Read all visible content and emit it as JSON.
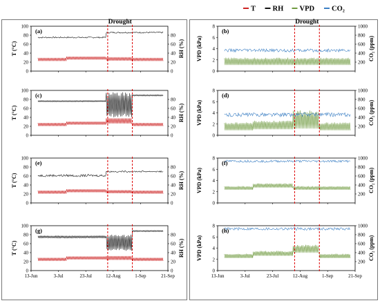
{
  "legend": {
    "items": [
      {
        "name": "T",
        "color": "#cc2222"
      },
      {
        "name": "RH",
        "color": "#111111"
      },
      {
        "name": "VPD",
        "color": "#6f9a3f"
      },
      {
        "name": "CO₂",
        "color": "#3b7fc4"
      }
    ]
  },
  "colors": {
    "T": "#cc2222",
    "RH": "#111111",
    "VPD": "#6f9a3f",
    "CO2": "#3b7fc4",
    "drought_line": "#dd0000"
  },
  "x_ticks": [
    "13-Jun",
    "3-Jul",
    "23-Jul",
    "12-Aug",
    "1-Sep",
    "21-Sep"
  ],
  "chart_data": [
    {
      "id": "a",
      "panel_label": "(a)",
      "type": "line",
      "title": "Drought",
      "ylabel_left": "T  (°C)",
      "ylabel_right": "RH (%)",
      "ylim_left": [
        0,
        100
      ],
      "ylim_right": [
        0,
        100
      ],
      "yticks_left": [
        0,
        20,
        40,
        60,
        80,
        100
      ],
      "yticks_right": [
        0,
        20,
        40,
        60,
        80
      ],
      "xlim": [
        "2023-06-13",
        "2023-09-21"
      ],
      "drought": [
        "2023-08-08",
        "2023-08-26"
      ],
      "series": [
        {
          "name": "T",
          "axis": "left",
          "amp_mode": "const",
          "values": [
            {
              "start": "2023-06-18",
              "end": "2023-07-09",
              "mean": 26,
              "amp": 3.5
            },
            {
              "start": "2023-07-09",
              "end": "2023-08-07",
              "mean": 29,
              "amp": 3.5
            },
            {
              "start": "2023-08-07",
              "end": "2023-08-26",
              "mean": 27,
              "amp": 4
            },
            {
              "start": "2023-08-26",
              "end": "2023-09-18",
              "mean": 26,
              "amp": 3.5
            }
          ]
        },
        {
          "name": "RH",
          "axis": "right",
          "amp_mode": "noise",
          "values": [
            {
              "start": "2023-06-18",
              "end": "2023-08-07",
              "mean": 75,
              "amp": 1.5
            },
            {
              "start": "2023-08-07",
              "end": "2023-09-18",
              "mean": 86,
              "amp": 1.5
            }
          ]
        }
      ]
    },
    {
      "id": "b",
      "panel_label": "(b)",
      "type": "line",
      "title": "Drought",
      "ylabel_left": "VPD (kPa)",
      "ylabel_right": "CO₂ (ppm)",
      "ylim_left": [
        0,
        8
      ],
      "ylim_right": [
        0,
        1000
      ],
      "yticks_left": [
        0,
        2,
        4,
        6,
        8
      ],
      "yticks_right": [
        200,
        400,
        600,
        800,
        1000
      ],
      "xlim": [
        "2023-06-13",
        "2023-09-21"
      ],
      "drought": [
        "2023-08-08",
        "2023-08-26"
      ],
      "series": [
        {
          "name": "VPD",
          "axis": "left",
          "amp_mode": "spike",
          "values": [
            {
              "start": "2023-06-18",
              "end": "2023-07-09",
              "mean": 1.2,
              "amp": 1.2
            },
            {
              "start": "2023-07-09",
              "end": "2023-08-07",
              "mean": 1.2,
              "amp": 1.2
            },
            {
              "start": "2023-08-07",
              "end": "2023-09-18",
              "mean": 1.2,
              "amp": 1.2
            }
          ]
        },
        {
          "name": "CO₂",
          "axis": "right",
          "amp_mode": "noise",
          "values": [
            {
              "start": "2023-06-18",
              "end": "2023-09-18",
              "mean": 460,
              "amp": 35
            }
          ]
        }
      ]
    },
    {
      "id": "c",
      "panel_label": "(c)",
      "type": "line",
      "ylabel_left": "T  (°C)",
      "ylabel_right": "RH (%)",
      "ylim_left": [
        0,
        100
      ],
      "ylim_right": [
        0,
        100
      ],
      "yticks_left": [
        0,
        20,
        40,
        60,
        80,
        100
      ],
      "yticks_right": [
        0,
        20,
        40,
        60,
        80
      ],
      "xlim": [
        "2023-06-13",
        "2023-09-21"
      ],
      "drought": [
        "2023-08-08",
        "2023-08-26"
      ],
      "series": [
        {
          "name": "T",
          "axis": "left",
          "amp_mode": "const",
          "values": [
            {
              "start": "2023-06-18",
              "end": "2023-07-09",
              "mean": 24,
              "amp": 3.5
            },
            {
              "start": "2023-07-09",
              "end": "2023-08-07",
              "mean": 27,
              "amp": 3.5
            },
            {
              "start": "2023-08-07",
              "end": "2023-08-26",
              "mean": 32,
              "amp": 6
            },
            {
              "start": "2023-08-26",
              "end": "2023-09-18",
              "mean": 24,
              "amp": 3.5
            }
          ]
        },
        {
          "name": "RH",
          "axis": "right",
          "amp_mode": "osc",
          "values": [
            {
              "start": "2023-06-18",
              "end": "2023-08-07",
              "mean": 76,
              "amp": 1.5
            },
            {
              "start": "2023-08-07",
              "end": "2023-08-26",
              "mean": 68,
              "amp": 28
            },
            {
              "start": "2023-08-26",
              "end": "2023-09-18",
              "mean": 89,
              "amp": 1.5
            }
          ]
        }
      ]
    },
    {
      "id": "d",
      "panel_label": "(d)",
      "type": "line",
      "ylabel_left": "VPD (kPa)",
      "ylabel_right": "CO₂ (ppm)",
      "ylim_left": [
        0,
        8
      ],
      "ylim_right": [
        0,
        1000
      ],
      "yticks_left": [
        0,
        2,
        4,
        6,
        8
      ],
      "yticks_right": [
        200,
        400,
        600,
        800,
        1000
      ],
      "xlim": [
        "2023-06-13",
        "2023-09-21"
      ],
      "drought": [
        "2023-08-08",
        "2023-08-26"
      ],
      "series": [
        {
          "name": "VPD",
          "axis": "left",
          "amp_mode": "spike",
          "values": [
            {
              "start": "2023-06-18",
              "end": "2023-07-09",
              "mean": 1.0,
              "amp": 1.3
            },
            {
              "start": "2023-07-09",
              "end": "2023-08-07",
              "mean": 1.2,
              "amp": 1.4
            },
            {
              "start": "2023-08-07",
              "end": "2023-08-26",
              "mean": 1.5,
              "amp": 3.0
            },
            {
              "start": "2023-08-26",
              "end": "2023-09-18",
              "mean": 1.0,
              "amp": 1.3
            }
          ]
        },
        {
          "name": "CO₂",
          "axis": "right",
          "amp_mode": "noise",
          "values": [
            {
              "start": "2023-06-18",
              "end": "2023-09-18",
              "mean": 460,
              "amp": 45
            }
          ]
        }
      ]
    },
    {
      "id": "e",
      "panel_label": "(e)",
      "type": "line",
      "ylabel_left": "T  (°C)",
      "ylabel_right": "RH (%)",
      "ylim_left": [
        0,
        100
      ],
      "ylim_right": [
        0,
        100
      ],
      "yticks_left": [
        0,
        20,
        40,
        60,
        80,
        100
      ],
      "yticks_right": [
        0,
        20,
        40,
        60,
        80
      ],
      "xlim": [
        "2023-06-13",
        "2023-09-21"
      ],
      "drought": [
        "2023-08-08",
        "2023-08-26"
      ],
      "series": [
        {
          "name": "T",
          "axis": "left",
          "amp_mode": "const",
          "values": [
            {
              "start": "2023-06-18",
              "end": "2023-07-09",
              "mean": 24,
              "amp": 3.5
            },
            {
              "start": "2023-07-09",
              "end": "2023-08-07",
              "mean": 27,
              "amp": 3.5
            },
            {
              "start": "2023-08-07",
              "end": "2023-08-26",
              "mean": 25,
              "amp": 3.5
            },
            {
              "start": "2023-08-26",
              "end": "2023-09-18",
              "mean": 24,
              "amp": 3.5
            }
          ]
        },
        {
          "name": "RH",
          "axis": "right",
          "amp_mode": "noise",
          "values": [
            {
              "start": "2023-06-18",
              "end": "2023-08-07",
              "mean": 61,
              "amp": 2.5
            },
            {
              "start": "2023-08-07",
              "end": "2023-09-18",
              "mean": 70,
              "amp": 1.5
            }
          ]
        }
      ]
    },
    {
      "id": "f",
      "panel_label": "(f)",
      "type": "line",
      "ylabel_left": "VPD (kPa)",
      "ylabel_right": "CO₂ (ppm)",
      "ylim_left": [
        0,
        8
      ],
      "ylim_right": [
        0,
        1000
      ],
      "yticks_left": [
        0,
        2,
        4,
        6,
        8
      ],
      "yticks_right": [
        200,
        400,
        600,
        800,
        1000
      ],
      "xlim": [
        "2023-06-13",
        "2023-09-21"
      ],
      "drought": [
        "2023-08-08",
        "2023-08-26"
      ],
      "series": [
        {
          "name": "VPD",
          "axis": "left",
          "amp_mode": "spike",
          "values": [
            {
              "start": "2023-06-18",
              "end": "2023-07-09",
              "mean": 2.4,
              "amp": 0.6
            },
            {
              "start": "2023-07-09",
              "end": "2023-08-07",
              "mean": 2.8,
              "amp": 0.7
            },
            {
              "start": "2023-08-07",
              "end": "2023-09-18",
              "mean": 2.4,
              "amp": 0.6
            }
          ]
        },
        {
          "name": "CO₂",
          "axis": "right",
          "amp_mode": "noise",
          "values": [
            {
              "start": "2023-06-18",
              "end": "2023-09-18",
              "mean": 930,
              "amp": 25
            }
          ]
        }
      ]
    },
    {
      "id": "g",
      "panel_label": "(g)",
      "type": "line",
      "ylabel_left": "T  (°C)",
      "ylabel_right": "RH (%)",
      "ylim_left": [
        0,
        100
      ],
      "ylim_right": [
        0,
        100
      ],
      "yticks_left": [
        0,
        20,
        40,
        60,
        80,
        100
      ],
      "yticks_right": [
        0,
        20,
        40,
        60,
        80
      ],
      "xlim": [
        "2023-06-13",
        "2023-09-21"
      ],
      "drought": [
        "2023-08-08",
        "2023-08-26"
      ],
      "x_ticks_visible": true,
      "series": [
        {
          "name": "T",
          "axis": "left",
          "amp_mode": "const",
          "values": [
            {
              "start": "2023-06-18",
              "end": "2023-07-09",
              "mean": 25,
              "amp": 3.5
            },
            {
              "start": "2023-07-09",
              "end": "2023-08-07",
              "mean": 28,
              "amp": 3.5
            },
            {
              "start": "2023-08-07",
              "end": "2023-08-26",
              "mean": 28,
              "amp": 4.5
            },
            {
              "start": "2023-08-26",
              "end": "2023-09-18",
              "mean": 25,
              "amp": 3.5
            }
          ]
        },
        {
          "name": "RH",
          "axis": "right",
          "amp_mode": "osc",
          "values": [
            {
              "start": "2023-06-18",
              "end": "2023-08-07",
              "mean": 75,
              "amp": 2.5
            },
            {
              "start": "2023-08-07",
              "end": "2023-08-26",
              "mean": 62,
              "amp": 18
            },
            {
              "start": "2023-08-26",
              "end": "2023-09-18",
              "mean": 88,
              "amp": 1.5
            }
          ]
        }
      ]
    },
    {
      "id": "h",
      "panel_label": "(h)",
      "type": "line",
      "ylabel_left": "VPD (kPa)",
      "ylabel_right": "CO₂ (ppm)",
      "ylim_left": [
        0,
        8
      ],
      "ylim_right": [
        0,
        1000
      ],
      "yticks_left": [
        0,
        2,
        4,
        6,
        8
      ],
      "yticks_right": [
        200,
        400,
        600,
        800,
        1000
      ],
      "xlim": [
        "2023-06-13",
        "2023-09-21"
      ],
      "drought": [
        "2023-08-08",
        "2023-08-26"
      ],
      "x_ticks_visible": true,
      "series": [
        {
          "name": "VPD",
          "axis": "left",
          "amp_mode": "spike",
          "values": [
            {
              "start": "2023-06-18",
              "end": "2023-07-09",
              "mean": 2.3,
              "amp": 0.7
            },
            {
              "start": "2023-07-09",
              "end": "2023-08-07",
              "mean": 2.7,
              "amp": 0.8
            },
            {
              "start": "2023-08-07",
              "end": "2023-08-26",
              "mean": 3.3,
              "amp": 1.3
            },
            {
              "start": "2023-08-26",
              "end": "2023-09-18",
              "mean": 2.3,
              "amp": 0.7
            }
          ]
        },
        {
          "name": "CO₂",
          "axis": "right",
          "amp_mode": "noise",
          "values": [
            {
              "start": "2023-06-18",
              "end": "2023-09-18",
              "mean": 930,
              "amp": 30
            }
          ]
        }
      ]
    }
  ]
}
